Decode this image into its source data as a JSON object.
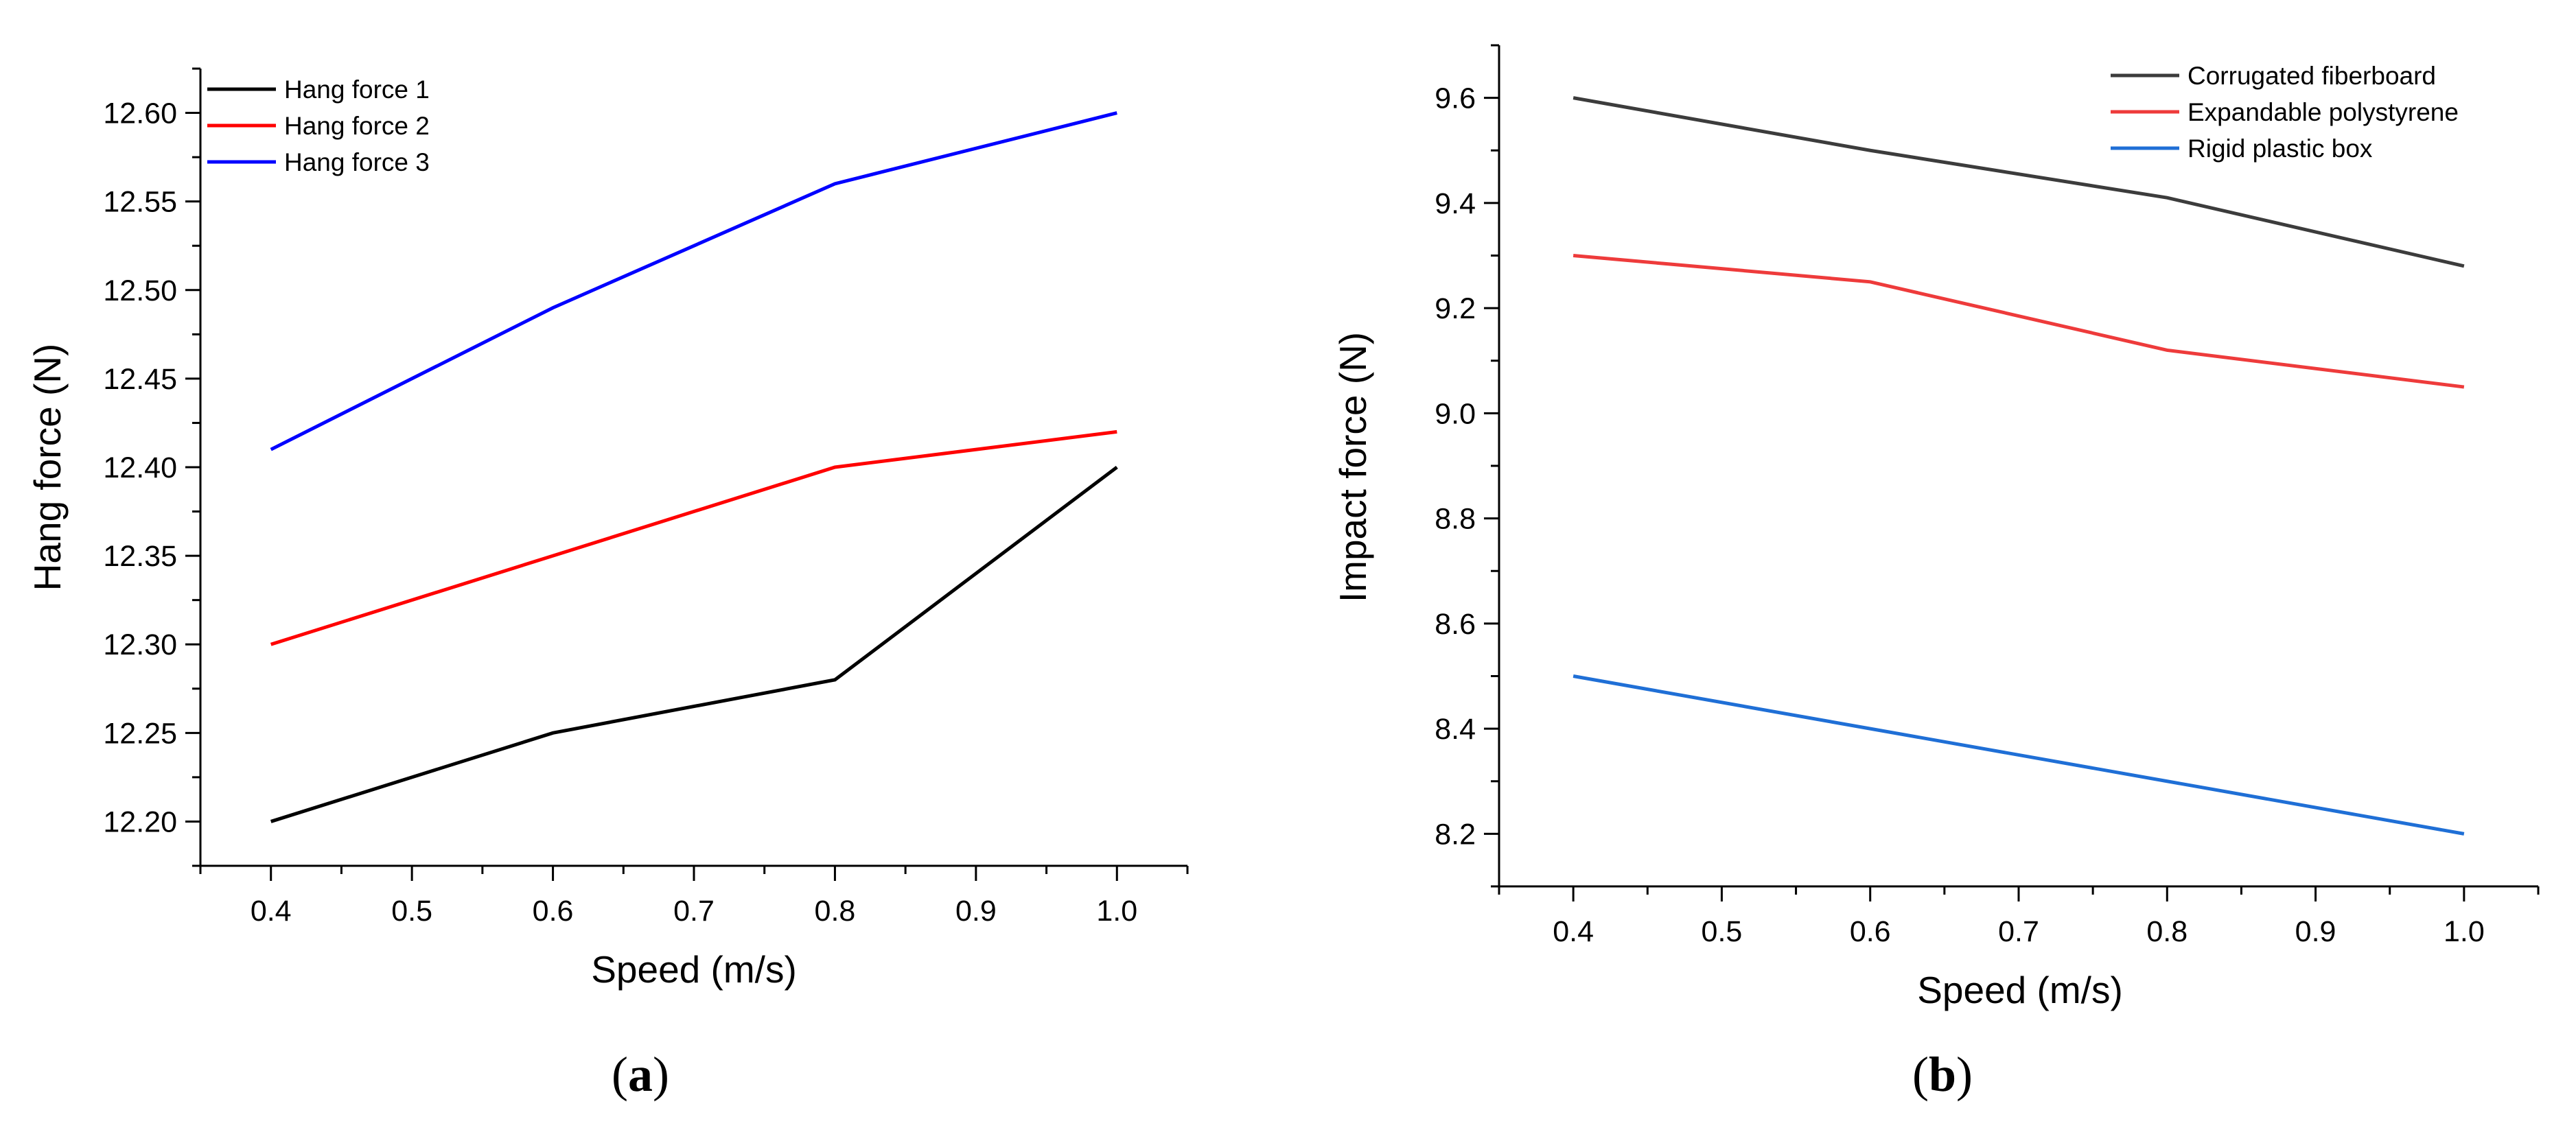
{
  "chart_data": [
    {
      "type": "line",
      "panel_label": {
        "open": "(",
        "letter": "a",
        "close": ")"
      },
      "xlabel": "Speed (m/s)",
      "ylabel": "Hang force (N)",
      "xlim": [
        0.35,
        1.05
      ],
      "ylim": [
        12.175,
        12.625
      ],
      "x_ticks": [
        0.4,
        0.5,
        0.6,
        0.7,
        0.8,
        0.9,
        1.0
      ],
      "x_tick_labels": [
        "0.4",
        "0.5",
        "0.6",
        "0.7",
        "0.8",
        "0.9",
        "1.0"
      ],
      "x_minor_ticks": [
        0.35,
        0.45,
        0.55,
        0.65,
        0.75,
        0.85,
        0.95,
        1.05
      ],
      "y_ticks": [
        12.2,
        12.25,
        12.3,
        12.35,
        12.4,
        12.45,
        12.5,
        12.55,
        12.6
      ],
      "y_tick_labels": [
        "12.20",
        "12.25",
        "12.30",
        "12.35",
        "12.40",
        "12.45",
        "12.50",
        "12.55",
        "12.60"
      ],
      "y_minor_ticks": [
        12.175,
        12.225,
        12.275,
        12.325,
        12.375,
        12.425,
        12.475,
        12.525,
        12.575,
        12.625
      ],
      "legend_position": "top-left",
      "x": [
        0.4,
        0.6,
        0.8,
        1.0
      ],
      "series": [
        {
          "name": "Hang force 1",
          "color": "#000000",
          "values": [
            12.2,
            12.25,
            12.28,
            12.4
          ]
        },
        {
          "name": "Hang force 2",
          "color": "#ff0000",
          "values": [
            12.3,
            12.35,
            12.4,
            12.42
          ]
        },
        {
          "name": "Hang force 3",
          "color": "#0000ff",
          "values": [
            12.41,
            12.49,
            12.56,
            12.6
          ]
        }
      ]
    },
    {
      "type": "line",
      "panel_label": {
        "open": "(",
        "letter": "b",
        "close": ")"
      },
      "xlabel": "Speed (m/s)",
      "ylabel": "Impact force (N)",
      "xlim": [
        0.35,
        1.05
      ],
      "ylim": [
        8.1,
        9.7
      ],
      "x_ticks": [
        0.4,
        0.5,
        0.6,
        0.7,
        0.8,
        0.9,
        1.0
      ],
      "x_tick_labels": [
        "0.4",
        "0.5",
        "0.6",
        "0.7",
        "0.8",
        "0.9",
        "1.0"
      ],
      "x_minor_ticks": [
        0.35,
        0.45,
        0.55,
        0.65,
        0.75,
        0.85,
        0.95,
        1.05
      ],
      "y_ticks": [
        8.2,
        8.4,
        8.6,
        8.8,
        9.0,
        9.2,
        9.4,
        9.6
      ],
      "y_tick_labels": [
        "8.2",
        "8.4",
        "8.6",
        "8.8",
        "9.0",
        "9.2",
        "9.4",
        "9.6"
      ],
      "y_minor_ticks": [
        8.1,
        8.3,
        8.5,
        8.7,
        8.9,
        9.1,
        9.3,
        9.5,
        9.7
      ],
      "legend_position": "top-right",
      "x": [
        0.4,
        0.6,
        0.8,
        1.0
      ],
      "series": [
        {
          "name": "Corrugated fiberboard",
          "color": "#3c3c3c",
          "values": [
            9.6,
            9.5,
            9.41,
            9.28
          ]
        },
        {
          "name": "Expandable polystyrene",
          "color": "#ee3b3b",
          "values": [
            9.3,
            9.25,
            9.12,
            9.05
          ]
        },
        {
          "name": "Rigid plastic box",
          "color": "#1f6fd6",
          "values": [
            8.5,
            8.4,
            8.3,
            8.2
          ]
        }
      ]
    }
  ]
}
